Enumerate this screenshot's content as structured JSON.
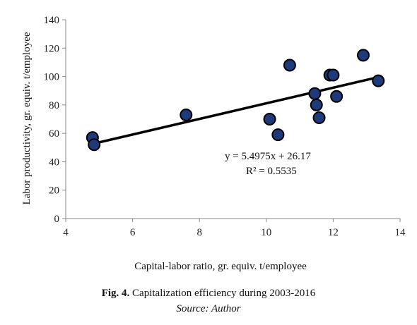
{
  "chart_data": {
    "type": "scatter",
    "xlabel": "Capital-labor ratio, gr. equiv. t/employee",
    "ylabel": "Labor productivity, gr. equiv. t/employee",
    "xlim": [
      4,
      14
    ],
    "ylim": [
      0,
      140
    ],
    "xticks": [
      4,
      6,
      8,
      10,
      12,
      14
    ],
    "yticks": [
      0,
      20,
      40,
      60,
      80,
      100,
      120,
      140
    ],
    "grid": false,
    "points": [
      {
        "x": 4.8,
        "y": 57
      },
      {
        "x": 4.85,
        "y": 52
      },
      {
        "x": 7.6,
        "y": 73
      },
      {
        "x": 10.1,
        "y": 70
      },
      {
        "x": 10.35,
        "y": 59
      },
      {
        "x": 10.7,
        "y": 108
      },
      {
        "x": 11.45,
        "y": 88
      },
      {
        "x": 11.5,
        "y": 80
      },
      {
        "x": 11.58,
        "y": 71
      },
      {
        "x": 11.9,
        "y": 101
      },
      {
        "x": 12.0,
        "y": 101
      },
      {
        "x": 12.1,
        "y": 86
      },
      {
        "x": 12.9,
        "y": 115
      },
      {
        "x": 13.35,
        "y": 97
      }
    ],
    "trendline": {
      "slope": 5.4975,
      "intercept": 26.17,
      "x_range": [
        4.8,
        13.35
      ],
      "equation_text": "y = 5.4975x + 26.17",
      "r2_text": "R² = 0.5535"
    },
    "colors": {
      "marker_fill": "#1f3a7a",
      "marker_edge": "#000000",
      "trendline": "#000000",
      "axis": "#888888"
    }
  },
  "caption": {
    "fig_label": "Fig. 4.",
    "fig_text": " Capitalization efficiency during 2003-2016",
    "source": "Source: Author"
  }
}
